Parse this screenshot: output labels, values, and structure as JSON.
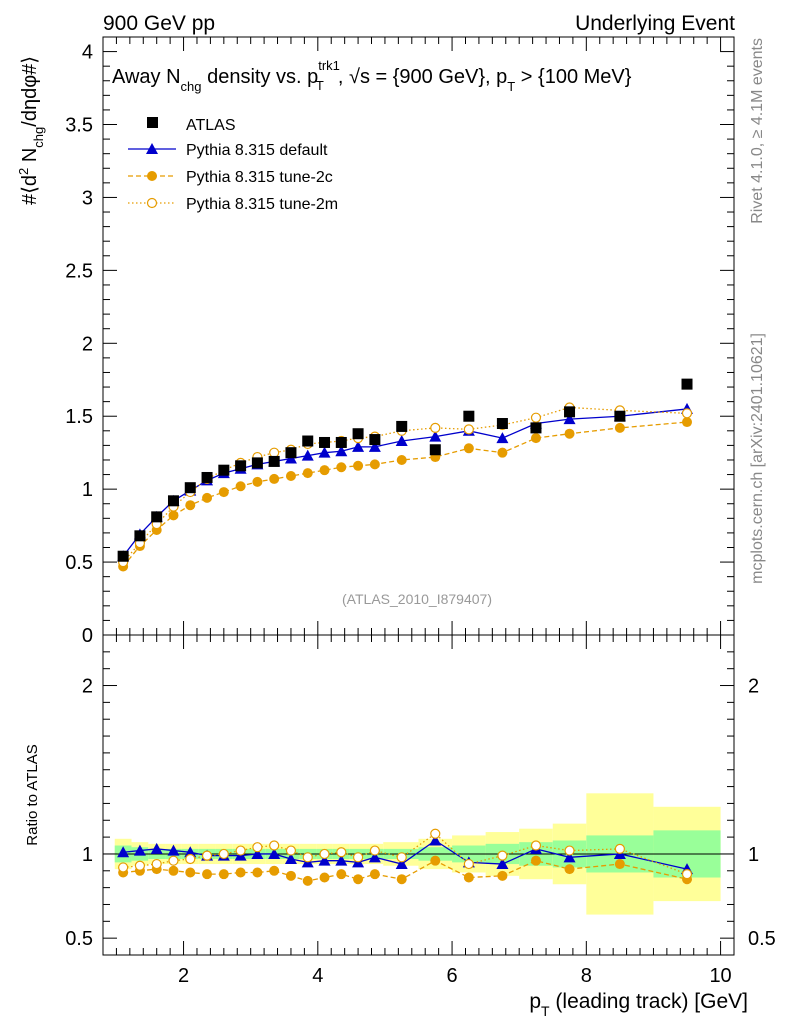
{
  "header": {
    "left": "900 GeV pp",
    "right": "Underlying Event"
  },
  "side_labels": {
    "right_top": "Rivet 4.1.0, ≥ 4.1M events",
    "right_bottom": "mcplots.cern.ch [arXiv:2401.10621]"
  },
  "analysis_label": "(ATLAS_2010_I879407)",
  "colors": {
    "atlas": "#000000",
    "default": "#0000cc",
    "tune2c": "#e69c00",
    "tune2m": "#e69c00",
    "band_inner": "#99ff99",
    "band_outer": "#ffff99"
  },
  "chart_data": [
    {
      "type": "scatter",
      "panel": "main",
      "title": "Away N_chg density vs. p_T^trk1, √s = {900 GeV}, p_T > {100 MeV}",
      "title_parts": {
        "p1": "Away N",
        "p1_sub": "chg",
        "p2": " density vs. p",
        "p2_sup": "trk1",
        "p2_sub": "T",
        "p3": ", √s = {900 GeV}, p",
        "p3_sub": "T",
        "p4": " > {100 MeV}"
      },
      "ylabel": "#⟨d² N_chg/dηdφ#⟩",
      "ylabel_parts": {
        "a": "#⟨d",
        "a_sup": "2",
        "b": " N",
        "b_sub": "chg",
        "c": "/dηdφ#⟩"
      },
      "xlim": [
        0.8,
        10.2
      ],
      "ylim": [
        0,
        4.1
      ],
      "yticks": [
        0,
        0.5,
        1,
        1.5,
        2,
        2.5,
        3,
        3.5,
        4
      ],
      "ytick_labels": [
        "0",
        "0.5",
        "1",
        "1.5",
        "2",
        "2.5",
        "3",
        "3.5",
        "4"
      ],
      "legend": [
        "ATLAS",
        "Pythia 8.315 default",
        "Pythia 8.315 tune-2c",
        "Pythia 8.315 tune-2m"
      ],
      "x": [
        1.1,
        1.35,
        1.6,
        1.85,
        2.1,
        2.35,
        2.6,
        2.85,
        3.1,
        3.35,
        3.6,
        3.85,
        4.1,
        4.35,
        4.6,
        4.85,
        5.25,
        5.75,
        6.25,
        6.75,
        7.25,
        7.75,
        8.5,
        9.5
      ],
      "series": [
        {
          "name": "ATLAS",
          "style": "square",
          "values": [
            0.54,
            0.68,
            0.81,
            0.92,
            1.01,
            1.08,
            1.13,
            1.16,
            1.18,
            1.19,
            1.25,
            1.33,
            1.32,
            1.32,
            1.38,
            1.34,
            1.43,
            1.27,
            1.5,
            1.45,
            1.42,
            1.53,
            1.5,
            1.72
          ]
        },
        {
          "name": "Pythia 8.315 default",
          "style": "triangle-line",
          "values": [
            0.54,
            0.69,
            0.81,
            0.92,
            0.99,
            1.06,
            1.11,
            1.14,
            1.17,
            1.19,
            1.21,
            1.23,
            1.25,
            1.26,
            1.29,
            1.29,
            1.33,
            1.36,
            1.4,
            1.35,
            1.45,
            1.48,
            1.5,
            1.55
          ]
        },
        {
          "name": "Pythia 8.315 tune-2c",
          "style": "circle-dashed",
          "values": [
            0.47,
            0.61,
            0.72,
            0.82,
            0.89,
            0.94,
            0.98,
            1.02,
            1.05,
            1.07,
            1.09,
            1.11,
            1.13,
            1.15,
            1.16,
            1.17,
            1.2,
            1.22,
            1.28,
            1.25,
            1.35,
            1.38,
            1.42,
            1.46
          ]
        },
        {
          "name": "Pythia 8.315 tune-2m",
          "style": "opencircle-dotted",
          "values": [
            0.5,
            0.63,
            0.76,
            0.88,
            0.98,
            1.07,
            1.13,
            1.18,
            1.22,
            1.25,
            1.27,
            1.31,
            1.32,
            1.33,
            1.35,
            1.36,
            1.4,
            1.42,
            1.41,
            1.44,
            1.49,
            1.56,
            1.54,
            1.52
          ]
        }
      ]
    },
    {
      "type": "scatter",
      "panel": "ratio",
      "ylabel": "Ratio to ATLAS",
      "xlabel": "p_T (leading track) [GeV]",
      "xlabel_parts": {
        "a": "p",
        "a_sub": "T",
        "b": " (leading track) [GeV]"
      },
      "xlim": [
        0.8,
        10.2
      ],
      "ylim": [
        0.4,
        2.3
      ],
      "xticks": [
        2,
        4,
        6,
        8,
        10
      ],
      "xtick_labels": [
        "2",
        "4",
        "6",
        "8",
        "10"
      ],
      "yticks": [
        0.5,
        1,
        2
      ],
      "ytick_labels": [
        "0.5",
        "1",
        "2"
      ],
      "bins": [
        [
          0.975,
          1.225
        ],
        [
          1.225,
          1.475
        ],
        [
          1.475,
          1.725
        ],
        [
          1.725,
          1.975
        ],
        [
          1.975,
          2.225
        ],
        [
          2.225,
          2.475
        ],
        [
          2.475,
          2.725
        ],
        [
          2.725,
          2.975
        ],
        [
          2.975,
          3.225
        ],
        [
          3.225,
          3.475
        ],
        [
          3.475,
          3.725
        ],
        [
          3.725,
          3.975
        ],
        [
          3.975,
          4.225
        ],
        [
          4.225,
          4.475
        ],
        [
          4.475,
          4.725
        ],
        [
          4.725,
          4.975
        ],
        [
          4.975,
          5.5
        ],
        [
          5.5,
          6.0
        ],
        [
          6.0,
          6.5
        ],
        [
          6.5,
          7.0
        ],
        [
          7.0,
          7.5
        ],
        [
          7.5,
          8.0
        ],
        [
          8.0,
          9.0
        ],
        [
          9.0,
          10.0
        ]
      ],
      "band_inner_halfwidth": [
        0.05,
        0.04,
        0.03,
        0.03,
        0.03,
        0.03,
        0.03,
        0.03,
        0.03,
        0.03,
        0.03,
        0.03,
        0.03,
        0.03,
        0.03,
        0.03,
        0.03,
        0.04,
        0.05,
        0.06,
        0.07,
        0.08,
        0.11,
        0.14
      ],
      "band_outer_halfwidth": [
        0.09,
        0.07,
        0.06,
        0.06,
        0.06,
        0.06,
        0.06,
        0.06,
        0.06,
        0.06,
        0.06,
        0.06,
        0.06,
        0.06,
        0.06,
        0.06,
        0.07,
        0.09,
        0.11,
        0.13,
        0.15,
        0.18,
        0.36,
        0.28
      ],
      "series": [
        {
          "name": "Pythia 8.315 default",
          "style": "triangle-line",
          "values": [
            1.01,
            1.02,
            1.03,
            1.02,
            1.01,
            0.99,
            0.99,
            0.99,
            1.0,
            1.0,
            0.97,
            0.95,
            0.96,
            0.96,
            0.95,
            0.98,
            0.94,
            1.08,
            0.95,
            0.94,
            1.03,
            0.98,
            1.0,
            0.91
          ]
        },
        {
          "name": "Pythia 8.315 tune-2c",
          "style": "circle-dashed",
          "values": [
            0.89,
            0.9,
            0.91,
            0.9,
            0.89,
            0.88,
            0.88,
            0.89,
            0.89,
            0.9,
            0.87,
            0.84,
            0.86,
            0.88,
            0.85,
            0.88,
            0.85,
            0.96,
            0.86,
            0.87,
            0.96,
            0.91,
            0.94,
            0.85
          ]
        },
        {
          "name": "Pythia 8.315 tune-2m",
          "style": "opencircle-dotted",
          "values": [
            0.92,
            0.93,
            0.94,
            0.96,
            0.97,
            0.99,
            1.0,
            1.02,
            1.04,
            1.05,
            1.02,
            0.98,
            1.0,
            1.01,
            0.98,
            1.02,
            0.98,
            1.12,
            0.94,
            0.99,
            1.05,
            1.02,
            1.03,
            0.88
          ]
        }
      ]
    }
  ]
}
